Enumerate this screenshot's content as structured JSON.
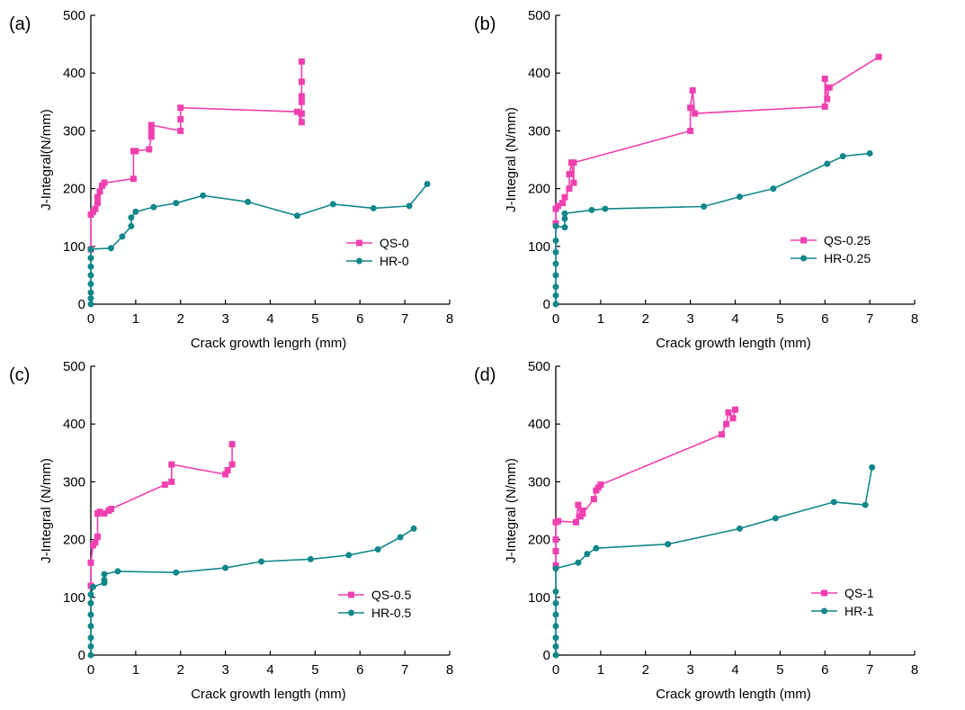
{
  "colors": {
    "qs": "#f040b0",
    "hr": "#12878a",
    "axis": "#000000"
  },
  "chart_data": [
    {
      "type": "line",
      "panel": "(a)",
      "xlabel": "Crack growth lengrh (mm)",
      "ylabel": "J-Integral(N/mm)",
      "xlim": [
        0,
        8
      ],
      "ylim": [
        0,
        500
      ],
      "xticks": [
        "0",
        "1",
        "2",
        "3",
        "4",
        "5",
        "6",
        "7",
        "8"
      ],
      "yticks": [
        "0",
        "100",
        "200",
        "300",
        "400",
        "500"
      ],
      "legend_position": "lower-right",
      "series": [
        {
          "name": "QS-0",
          "marker": "square",
          "x": [
            0.0,
            0.0,
            0.05,
            0.1,
            0.15,
            0.15,
            0.2,
            0.25,
            0.3,
            0.3,
            0.95,
            0.95,
            1.0,
            1.3,
            1.35,
            1.35,
            1.35,
            2.0,
            2.0,
            2.0,
            4.6,
            4.7,
            4.7,
            4.7,
            4.7,
            4.7,
            4.7
          ],
          "y": [
            95,
            155,
            160,
            165,
            175,
            185,
            195,
            205,
            210,
            210,
            217,
            265,
            265,
            268,
            290,
            300,
            310,
            300,
            320,
            340,
            333,
            315,
            330,
            350,
            360,
            385,
            420
          ]
        },
        {
          "name": "HR-0",
          "marker": "circle",
          "x": [
            0.0,
            0.0,
            0.0,
            0.0,
            0.0,
            0.0,
            0.0,
            0.0,
            0.45,
            0.7,
            0.9,
            0.9,
            1.0,
            1.4,
            1.9,
            2.5,
            3.5,
            4.6,
            5.4,
            6.3,
            7.1,
            7.5
          ],
          "y": [
            0,
            10,
            20,
            35,
            50,
            65,
            80,
            95,
            97,
            117,
            135,
            150,
            160,
            168,
            175,
            188,
            177,
            153,
            173,
            166,
            170,
            208
          ]
        }
      ]
    },
    {
      "type": "line",
      "panel": "(b)",
      "xlabel": "Crack growth length (mm)",
      "ylabel": "J-Integral (N/mm)",
      "xlim": [
        0,
        8
      ],
      "ylim": [
        0,
        500
      ],
      "xticks": [
        "0",
        "1",
        "2",
        "3",
        "4",
        "5",
        "6",
        "7",
        "8"
      ],
      "yticks": [
        "0",
        "100",
        "200",
        "300",
        "400",
        "500"
      ],
      "legend_position": "lower-right",
      "series": [
        {
          "name": "QS-0.25",
          "marker": "square",
          "x": [
            0.0,
            0.0,
            0.05,
            0.15,
            0.2,
            0.3,
            0.3,
            0.35,
            0.4,
            0.4,
            3.0,
            3.0,
            3.05,
            3.1,
            6.0,
            6.0,
            6.05,
            6.1,
            7.2
          ],
          "y": [
            140,
            165,
            170,
            175,
            185,
            200,
            225,
            245,
            210,
            245,
            300,
            340,
            370,
            330,
            342,
            390,
            355,
            375,
            428
          ]
        },
        {
          "name": "HR-0.25",
          "marker": "circle",
          "x": [
            0.0,
            0.0,
            0.0,
            0.0,
            0.0,
            0.0,
            0.0,
            0.0,
            0.2,
            0.2,
            0.2,
            0.8,
            1.1,
            3.3,
            4.1,
            4.85,
            6.05,
            6.4,
            7.0
          ],
          "y": [
            0,
            15,
            30,
            50,
            70,
            90,
            110,
            135,
            133,
            148,
            157,
            163,
            165,
            169,
            186,
            200,
            243,
            256,
            261
          ]
        }
      ]
    },
    {
      "type": "line",
      "panel": "(c)",
      "xlabel": "Crack growth length (mm)",
      "ylabel": "J-Integral (N/mm)",
      "xlim": [
        0,
        8
      ],
      "ylim": [
        0,
        500
      ],
      "xticks": [
        "0",
        "1",
        "2",
        "3",
        "4",
        "5",
        "6",
        "7",
        "8"
      ],
      "yticks": [
        "0",
        "100",
        "200",
        "300",
        "400",
        "500"
      ],
      "legend_position": "lower-right",
      "series": [
        {
          "name": "QS-0.5",
          "marker": "square",
          "x": [
            0.0,
            0.0,
            0.05,
            0.1,
            0.15,
            0.15,
            0.2,
            0.3,
            0.4,
            0.45,
            1.65,
            1.8,
            1.8,
            3.0,
            3.05,
            3.15,
            3.15
          ],
          "y": [
            120,
            160,
            190,
            195,
            205,
            245,
            248,
            245,
            250,
            253,
            295,
            300,
            330,
            313,
            320,
            330,
            365
          ]
        },
        {
          "name": "HR-0.5",
          "marker": "circle",
          "x": [
            0.0,
            0.0,
            0.0,
            0.0,
            0.0,
            0.0,
            0.0,
            0.05,
            0.3,
            0.3,
            0.3,
            0.6,
            1.9,
            3.0,
            3.8,
            4.9,
            5.75,
            6.4,
            6.9,
            7.2
          ],
          "y": [
            0,
            15,
            30,
            50,
            70,
            90,
            105,
            118,
            125,
            130,
            140,
            145,
            143,
            151,
            162,
            166,
            173,
            183,
            204,
            219
          ]
        }
      ]
    },
    {
      "type": "line",
      "panel": "(d)",
      "xlabel": "Crack growth length (mm)",
      "ylabel": "J-Integral (N/mm)",
      "xlim": [
        0,
        8
      ],
      "ylim": [
        0,
        500
      ],
      "xticks": [
        "0",
        "1",
        "2",
        "3",
        "4",
        "5",
        "6",
        "7",
        "8"
      ],
      "yticks": [
        "0",
        "100",
        "200",
        "300",
        "400",
        "500"
      ],
      "legend_position": "lower-right",
      "series": [
        {
          "name": "QS-1",
          "marker": "square",
          "x": [
            0.0,
            0.0,
            0.0,
            0.0,
            0.05,
            0.45,
            0.5,
            0.55,
            0.6,
            0.6,
            0.85,
            0.9,
            0.95,
            1.0,
            3.7,
            3.8,
            3.85,
            3.95,
            4.0
          ],
          "y": [
            155,
            180,
            200,
            230,
            232,
            230,
            260,
            240,
            250,
            245,
            270,
            285,
            290,
            295,
            382,
            400,
            420,
            410,
            425
          ]
        },
        {
          "name": "HR-1",
          "marker": "circle",
          "x": [
            0.0,
            0.0,
            0.0,
            0.0,
            0.0,
            0.0,
            0.0,
            0.0,
            0.5,
            0.7,
            0.9,
            2.5,
            4.1,
            4.9,
            6.2,
            6.9,
            7.05
          ],
          "y": [
            0,
            15,
            30,
            50,
            70,
            90,
            110,
            150,
            160,
            175,
            185,
            192,
            219,
            237,
            265,
            260,
            325
          ]
        }
      ]
    }
  ]
}
